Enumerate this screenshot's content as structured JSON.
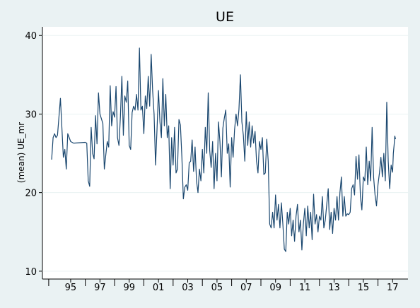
{
  "chart_data": {
    "type": "line",
    "title": "UE",
    "ylabel": "(mean) UE_mr",
    "color": "#1a476f",
    "x": [
      1993.7,
      1993.8,
      1993.9,
      1994.0,
      1994.1,
      1994.3,
      1994.5,
      1994.6,
      1994.7,
      1994.8,
      1995.0,
      1995.2,
      1996.0,
      1996.1,
      1996.2,
      1996.3,
      1996.4,
      1996.5,
      1996.6,
      1996.7,
      1996.8,
      1996.9,
      1997.0,
      1997.2,
      1997.3,
      1997.4,
      1997.5,
      1997.6,
      1997.7,
      1997.8,
      1997.9,
      1998.0,
      1998.1,
      1998.2,
      1998.3,
      1998.4,
      1998.5,
      1998.6,
      1998.7,
      1998.8,
      1998.9,
      1999.0,
      1999.1,
      1999.2,
      1999.3,
      1999.4,
      1999.5,
      1999.6,
      1999.7,
      1999.8,
      1999.9,
      2000.0,
      2000.1,
      2000.2,
      2000.3,
      2000.4,
      2000.5,
      2000.6,
      2000.7,
      2000.8,
      2000.9,
      2001.0,
      2001.1,
      2001.2,
      2001.3,
      2001.4,
      2001.5,
      2001.6,
      2001.7,
      2001.8,
      2001.9,
      2002.0,
      2002.1,
      2002.2,
      2002.3,
      2002.4,
      2002.5,
      2002.6,
      2002.7,
      2002.8,
      2002.9,
      2003.0,
      2003.1,
      2003.2,
      2003.3,
      2003.4,
      2003.5,
      2003.6,
      2003.7,
      2003.8,
      2003.9,
      2004.0,
      2004.1,
      2004.2,
      2004.3,
      2004.4,
      2004.5,
      2004.6,
      2004.7,
      2004.8,
      2004.9,
      2005.0,
      2005.1,
      2005.2,
      2005.3,
      2005.4,
      2005.5,
      2005.6,
      2005.7,
      2005.8,
      2005.9,
      2006.0,
      2006.1,
      2006.2,
      2006.3,
      2006.4,
      2006.5,
      2006.6,
      2006.7,
      2006.8,
      2006.9,
      2007.0,
      2007.1,
      2007.2,
      2007.3,
      2007.4,
      2007.5,
      2007.6,
      2007.7,
      2007.8,
      2007.9,
      2008.0,
      2008.1,
      2008.2,
      2008.3,
      2008.4,
      2008.5,
      2008.6,
      2008.7,
      2008.8,
      2008.9,
      2009.0,
      2009.1,
      2009.2,
      2009.3,
      2009.4,
      2009.5,
      2009.6,
      2009.7,
      2009.8,
      2009.9,
      2010.0,
      2010.1,
      2010.2,
      2010.3,
      2010.4,
      2010.5,
      2010.6,
      2010.7,
      2010.8,
      2010.9,
      2011.0,
      2011.1,
      2011.2,
      2011.3,
      2011.4,
      2011.5,
      2011.6,
      2011.7,
      2011.8,
      2011.9,
      2012.0,
      2012.1,
      2012.2,
      2012.3,
      2012.4,
      2012.5,
      2012.6,
      2012.7,
      2012.8,
      2012.9,
      2013.0,
      2013.1,
      2013.2,
      2013.3,
      2013.4,
      2013.5,
      2013.6,
      2013.7,
      2013.8,
      2013.9,
      2014.0,
      2014.1,
      2014.2,
      2014.3,
      2014.4,
      2014.5,
      2014.6,
      2014.7,
      2014.8,
      2014.9,
      2015.0,
      2015.1,
      2015.2,
      2015.3,
      2015.4,
      2015.5,
      2015.6,
      2015.7,
      2015.8,
      2015.9,
      2016.0,
      2016.1,
      2016.2,
      2016.3,
      2016.4,
      2016.5,
      2016.6,
      2016.7,
      2016.8,
      2016.9,
      2017.0,
      2017.05,
      2017.1,
      2017.15,
      2017.2
    ],
    "values": [
      24.2,
      27,
      27.5,
      27,
      27.3,
      32,
      24.5,
      25.5,
      23,
      27.5,
      26.5,
      26.3,
      26.4,
      26.3,
      21.5,
      20.8,
      28.3,
      25,
      24.3,
      29.8,
      26.2,
      32.7,
      30,
      28.8,
      23,
      24.8,
      26.5,
      25.8,
      33.6,
      28.5,
      30.3,
      29.6,
      33.5,
      27,
      26,
      29.7,
      34.8,
      27.3,
      32.3,
      31.5,
      34.2,
      26,
      25.5,
      30.2,
      31,
      30.5,
      32.5,
      30.5,
      38.4,
      30.5,
      31,
      27.5,
      32.3,
      30.7,
      34.8,
      31,
      37.6,
      33,
      30,
      23.5,
      28,
      33,
      29,
      27,
      34.5,
      28.5,
      32.5,
      27,
      28.5,
      20.5,
      27,
      23.5,
      28.3,
      22.5,
      23,
      29.3,
      28.6,
      24.5,
      19.2,
      20.7,
      21,
      20.3,
      23.8,
      24,
      26.7,
      22.7,
      25.8,
      21.5,
      20,
      23,
      21.5,
      25.5,
      22.5,
      28.3,
      25,
      32.7,
      25.4,
      23.2,
      26.5,
      20.5,
      25,
      21.5,
      29,
      26.5,
      22,
      28.2,
      29.5,
      30.5,
      25,
      26.2,
      20.7,
      27,
      24.5,
      28,
      30,
      28.5,
      30.6,
      35,
      29,
      27.3,
      24,
      30.3,
      26,
      29,
      25.8,
      28.5,
      26.3,
      27.8,
      24,
      22.5,
      26.5,
      25.5,
      27,
      22.3,
      22.5,
      26.8,
      24,
      16,
      15.5,
      17.5,
      15.5,
      19.7,
      16.5,
      18.5,
      15.5,
      18.7,
      16,
      12.8,
      12.5,
      17.5,
      16,
      18,
      14.5,
      16.5,
      13.8,
      17,
      18.5,
      15,
      16.5,
      12.7,
      16,
      18,
      14.5,
      18.3,
      15.5,
      17.5,
      14,
      19.8,
      16,
      17.2,
      15,
      17,
      16.5,
      19.5,
      15.5,
      16.5,
      18.5,
      20.5,
      15.3,
      17.5,
      14.8,
      18,
      16.5,
      19.5,
      16.5,
      20,
      22,
      17,
      19.5,
      17,
      17.3,
      17.2,
      17.5,
      20.5,
      21,
      19.7,
      24.6,
      21.7,
      24.8,
      19.5,
      17.8,
      22,
      21.5,
      25.8,
      21,
      24,
      21.5,
      28.3,
      22,
      19.7,
      18.3,
      21,
      22.5,
      24.5,
      22,
      25,
      21.5,
      31.5,
      24,
      20.5,
      23.5,
      22.6,
      25,
      26,
      27.2,
      26.8
    ],
    "xlim": [
      1993.07,
      2018.05
    ],
    "xticks": [
      {
        "value": 1995,
        "label": "95"
      },
      {
        "value": 1997,
        "label": "97"
      },
      {
        "value": 1999,
        "label": "99"
      },
      {
        "value": 2001,
        "label": "01"
      },
      {
        "value": 2003,
        "label": "03"
      },
      {
        "value": 2005,
        "label": "05"
      },
      {
        "value": 2007,
        "label": "07"
      },
      {
        "value": 2009,
        "label": "09"
      },
      {
        "value": 2011,
        "label": "11"
      },
      {
        "value": 2013,
        "label": "13"
      },
      {
        "value": 2015,
        "label": "15"
      },
      {
        "value": 2017,
        "label": "17"
      }
    ],
    "xticks_minor": [
      1993.5,
      1996,
      1998,
      2000,
      2002,
      2004,
      2006,
      2008,
      2010,
      2012,
      2014,
      2016
    ],
    "ylim": [
      9.0,
      41.1
    ],
    "yticks": [
      10,
      20,
      30,
      40
    ],
    "grid": true
  }
}
